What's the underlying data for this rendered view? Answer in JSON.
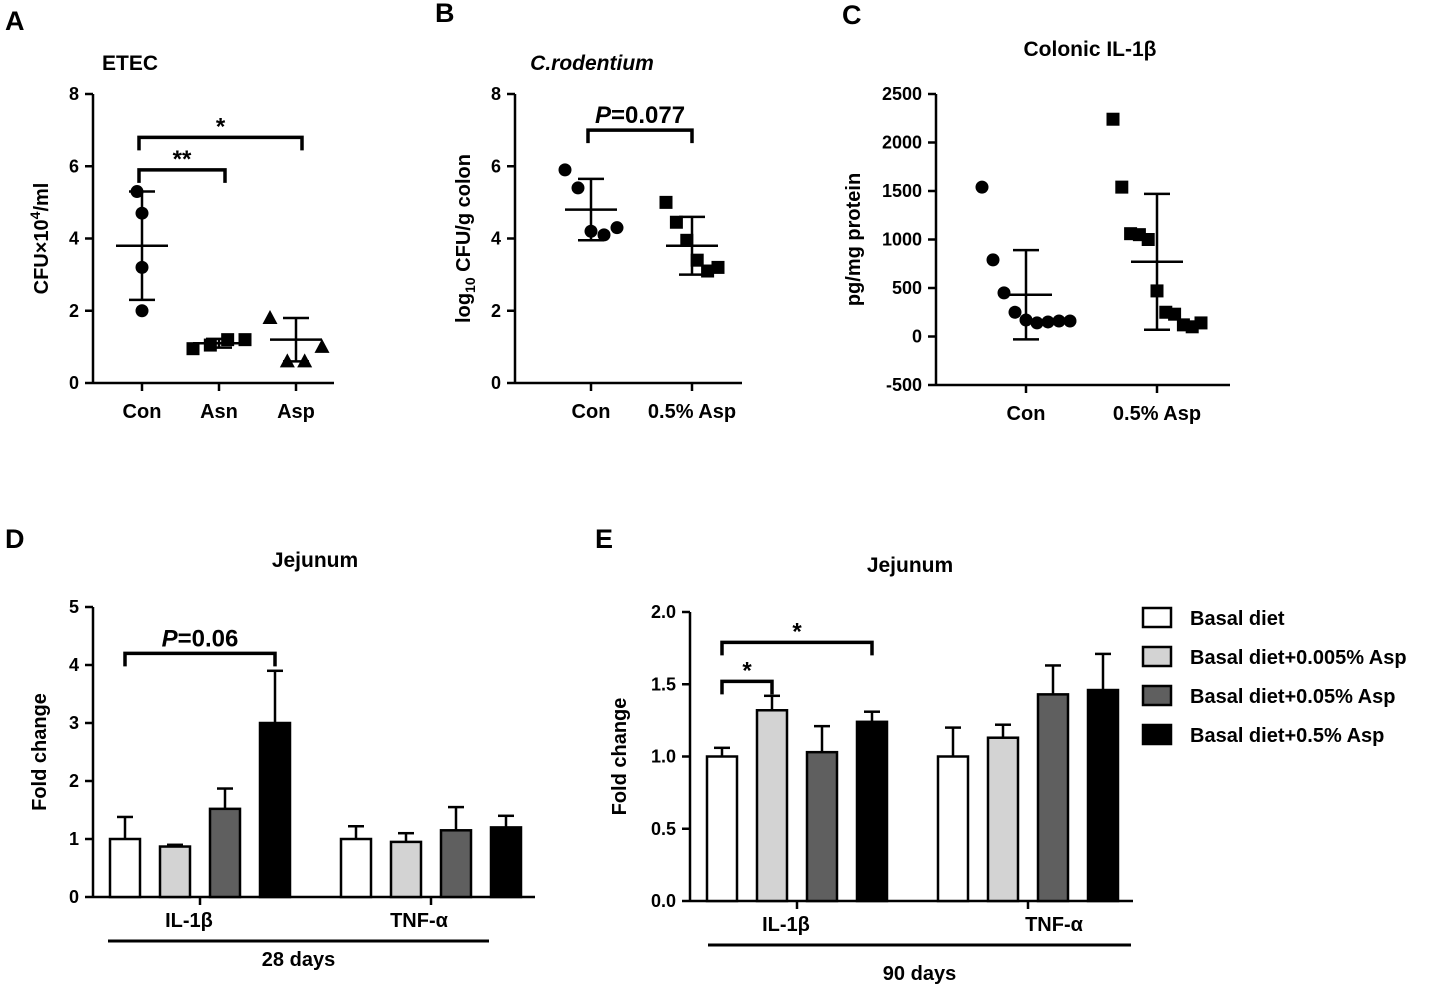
{
  "chart_data": [
    {
      "panel": "A",
      "type": "scatter",
      "title": "ETEC",
      "ylabel_main": "CFU×10",
      "ylabel_sup": "4",
      "ylabel_tail": "/ml",
      "ylim": [
        0,
        8
      ],
      "yticks": [
        0,
        2,
        4,
        6,
        8
      ],
      "categories": [
        "Con",
        "Asn",
        "Asp"
      ],
      "markers": [
        "circle",
        "square",
        "triangle"
      ],
      "points": [
        [
          5.3,
          4.7,
          3.2,
          2.0
        ],
        [
          0.95,
          1.05,
          1.2,
          1.2
        ],
        [
          1.8,
          0.6,
          0.6,
          1.0
        ]
      ],
      "means": [
        3.8,
        1.1,
        1.2
      ],
      "sd": [
        1.5,
        0.12,
        0.6
      ],
      "brackets": [
        {
          "from": 0,
          "to": 1,
          "y": 5.9,
          "label": "**",
          "italic_p": false
        },
        {
          "from": 0,
          "to": 2,
          "y": 6.8,
          "label": "*",
          "italic_p": false
        }
      ]
    },
    {
      "panel": "B",
      "type": "scatter",
      "title": "C.rodentium",
      "ylabel_main": "log",
      "ylabel_sub": "10",
      "ylabel_tail": " CFU/g colon",
      "ylim": [
        0,
        8
      ],
      "yticks": [
        0,
        2,
        4,
        6,
        8
      ],
      "categories": [
        "Con",
        "0.5% Asp"
      ],
      "markers": [
        "circle",
        "square"
      ],
      "points": [
        [
          5.9,
          5.4,
          4.2,
          4.1,
          4.3
        ],
        [
          5.0,
          4.45,
          3.95,
          3.4,
          3.1,
          3.2
        ]
      ],
      "means": [
        4.8,
        3.8
      ],
      "sd": [
        0.85,
        0.8
      ],
      "brackets": [
        {
          "from": 0,
          "to": 1,
          "y": 7.0,
          "label": "=0.077",
          "p_letter": "P",
          "italic_p": true
        }
      ]
    },
    {
      "panel": "C",
      "type": "scatter",
      "title": "Colonic IL-1β",
      "ylabel_main": "pg/mg protein",
      "ylim": [
        -500,
        2500
      ],
      "yticks": [
        -500,
        0,
        500,
        1000,
        1500,
        2000,
        2500
      ],
      "categories": [
        "Con",
        "0.5% Asp"
      ],
      "markers": [
        "circle",
        "square"
      ],
      "points": [
        [
          1540,
          790,
          450,
          250,
          170,
          140,
          150,
          160,
          160
        ],
        [
          2240,
          1540,
          1060,
          1050,
          1000,
          470,
          250,
          230,
          120,
          100,
          140
        ]
      ],
      "means": [
        430,
        770
      ],
      "sd": [
        460,
        700
      ],
      "brackets": []
    },
    {
      "panel": "D",
      "type": "bar",
      "title": "Jejunum",
      "ylabel": "Fold change",
      "ylim": [
        0,
        5
      ],
      "yticks": [
        0,
        1,
        2,
        3,
        4,
        5
      ],
      "categories": [
        "IL-1β",
        "TNF-α"
      ],
      "group_label": "28 days",
      "series": [
        {
          "name": "Basal diet",
          "values": [
            1.0,
            1.0
          ],
          "errors": [
            0.38,
            0.22
          ]
        },
        {
          "name": "Basal diet+0.005% Asp",
          "values": [
            0.87,
            0.95
          ],
          "errors": [
            0.03,
            0.15
          ]
        },
        {
          "name": "Basal diet+0.05% Asp",
          "values": [
            1.52,
            1.15
          ],
          "errors": [
            0.35,
            0.4
          ]
        },
        {
          "name": "Basal diet+0.5% Asp",
          "values": [
            3.0,
            1.2
          ],
          "errors": [
            0.9,
            0.2
          ]
        }
      ],
      "brackets": [
        {
          "category": 0,
          "from": 0,
          "to": 3,
          "y": 4.2,
          "label": "=0.06",
          "p_letter": "P",
          "italic_p": true
        }
      ]
    },
    {
      "panel": "E",
      "type": "bar",
      "title": "Jejunum",
      "ylabel": "Fold change",
      "ylim": [
        0,
        2.0
      ],
      "yticks": [
        "0.0",
        "0.5",
        "1.0",
        "1.5",
        "2.0"
      ],
      "categories": [
        "IL-1β",
        "TNF-α"
      ],
      "group_label": "90 days",
      "series": [
        {
          "name": "Basal diet",
          "values": [
            1.0,
            1.0
          ],
          "errors": [
            0.06,
            0.2
          ]
        },
        {
          "name": "Basal diet+0.005% Asp",
          "values": [
            1.32,
            1.13
          ],
          "errors": [
            0.1,
            0.09
          ]
        },
        {
          "name": "Basal diet+0.05% Asp",
          "values": [
            1.03,
            1.43
          ],
          "errors": [
            0.18,
            0.2
          ]
        },
        {
          "name": "Basal diet+0.5% Asp",
          "values": [
            1.24,
            1.46
          ],
          "errors": [
            0.07,
            0.25
          ]
        }
      ],
      "brackets": [
        {
          "category": 0,
          "from": 0,
          "to": 1,
          "y": 1.52,
          "label": "*",
          "italic_p": false
        },
        {
          "category": 0,
          "from": 0,
          "to": 3,
          "y": 1.79,
          "label": "*",
          "italic_p": false
        }
      ]
    }
  ],
  "bar_colors": [
    "#ffffff",
    "#d3d3d3",
    "#5f5f5f",
    "#000000"
  ],
  "legend": [
    "Basal diet",
    "Basal diet+0.005% Asp",
    "Basal diet+0.05% Asp",
    "Basal diet+0.5% Asp"
  ]
}
